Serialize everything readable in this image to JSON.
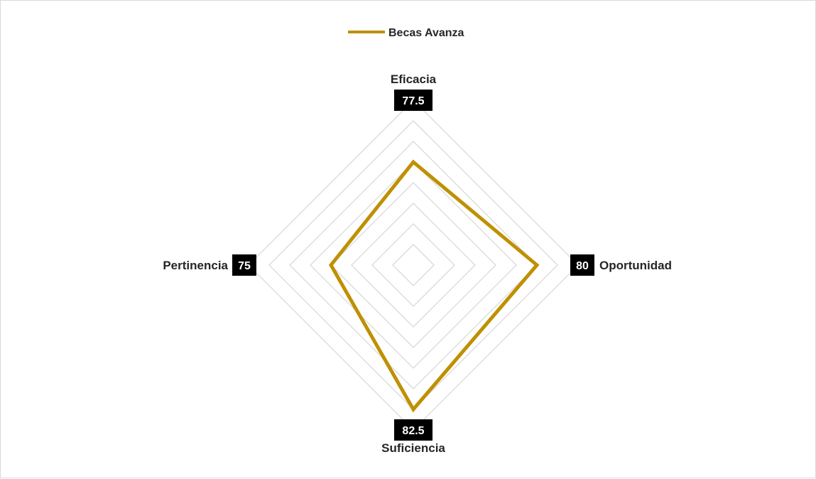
{
  "chart_data": {
    "type": "radar",
    "title": "",
    "categories": [
      "Eficacia",
      "Oportunidad",
      "Suficiencia",
      "Pertinencia"
    ],
    "series": [
      {
        "name": "Becas Avanza",
        "values": [
          77.5,
          80,
          82.5,
          75
        ],
        "color": "#bf9000"
      }
    ],
    "data_labels": [
      "77.5",
      "80",
      "82.5",
      "75"
    ],
    "rlim": [
      65,
      85
    ],
    "grid_rings": 8,
    "grid": true,
    "legend_position": "top",
    "colors": {
      "grid": "#d9d9d9",
      "label_box": "#000000",
      "label_text": "#ffffff"
    }
  }
}
